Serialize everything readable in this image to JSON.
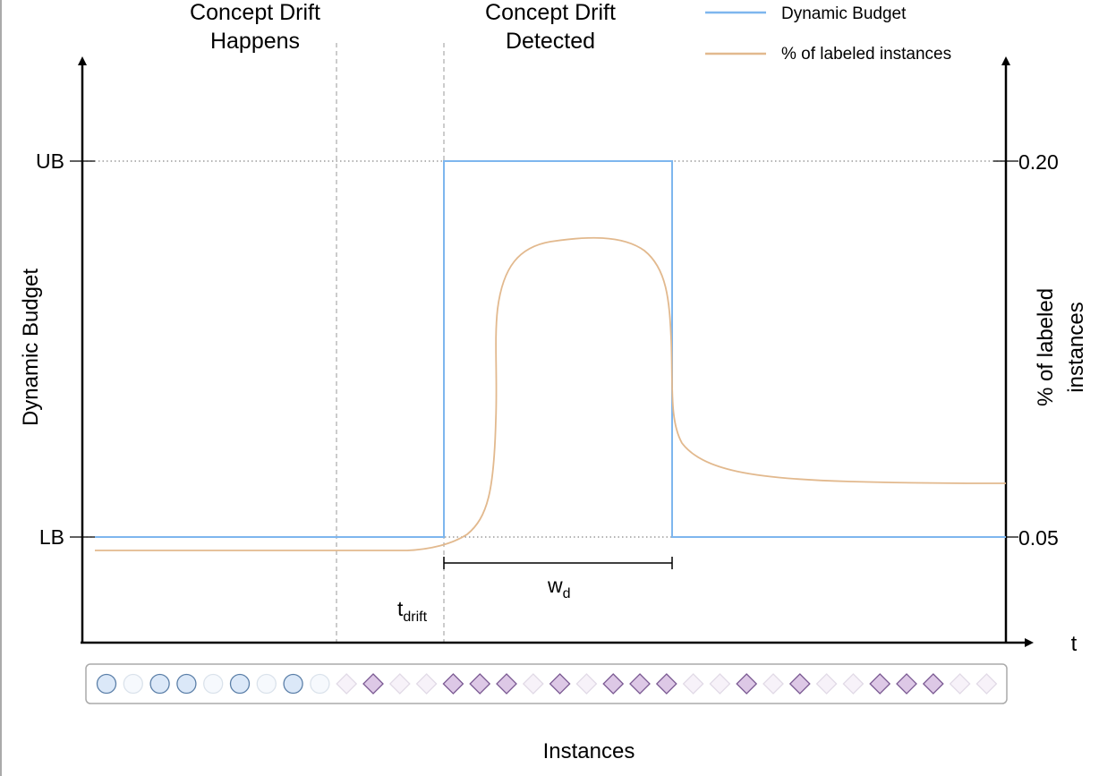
{
  "annotations": {
    "drift_happens": [
      "Concept Drift",
      "Happens"
    ],
    "drift_detected": [
      "Concept Drift",
      "Detected"
    ],
    "t_drift": {
      "base": "t",
      "sub": "drift"
    },
    "w_d": {
      "base": "w",
      "sub": "d"
    }
  },
  "legend": [
    {
      "label": "Dynamic Budget",
      "color": "#7eb6ee"
    },
    {
      "label": "% of labeled instances",
      "color": "#e2b98e"
    }
  ],
  "axes": {
    "left_title": "Dynamic Budget",
    "left_ticks": [
      "UB",
      "LB"
    ],
    "right_title": [
      "% of labeled",
      "instances"
    ],
    "right_ticks": [
      "0.20",
      "0.05"
    ],
    "x_label": "t",
    "bottom_title": "Instances"
  },
  "colors": {
    "budget": "#7eb6ee",
    "labeled": "#e2b98e",
    "axis": "#000000",
    "guide": "#aaaaaa",
    "circle_fill": "#dbe8f8",
    "circle_stroke": "#5b7fa8",
    "diamond_fill": "#ddc8e6",
    "diamond_stroke": "#7b5a93"
  },
  "instances": [
    {
      "shape": "circle",
      "labeled": true
    },
    {
      "shape": "circle",
      "labeled": false
    },
    {
      "shape": "circle",
      "labeled": true
    },
    {
      "shape": "circle",
      "labeled": true
    },
    {
      "shape": "circle",
      "labeled": false
    },
    {
      "shape": "circle",
      "labeled": true
    },
    {
      "shape": "circle",
      "labeled": false
    },
    {
      "shape": "circle",
      "labeled": true
    },
    {
      "shape": "circle",
      "labeled": false
    },
    {
      "shape": "diamond",
      "labeled": false
    },
    {
      "shape": "diamond",
      "labeled": true
    },
    {
      "shape": "diamond",
      "labeled": false
    },
    {
      "shape": "diamond",
      "labeled": false
    },
    {
      "shape": "diamond",
      "labeled": true
    },
    {
      "shape": "diamond",
      "labeled": true
    },
    {
      "shape": "diamond",
      "labeled": true
    },
    {
      "shape": "diamond",
      "labeled": false
    },
    {
      "shape": "diamond",
      "labeled": true
    },
    {
      "shape": "diamond",
      "labeled": false
    },
    {
      "shape": "diamond",
      "labeled": true
    },
    {
      "shape": "diamond",
      "labeled": true
    },
    {
      "shape": "diamond",
      "labeled": true
    },
    {
      "shape": "diamond",
      "labeled": false
    },
    {
      "shape": "diamond",
      "labeled": false
    },
    {
      "shape": "diamond",
      "labeled": true
    },
    {
      "shape": "diamond",
      "labeled": false
    },
    {
      "shape": "diamond",
      "labeled": true
    },
    {
      "shape": "diamond",
      "labeled": false
    },
    {
      "shape": "diamond",
      "labeled": false
    },
    {
      "shape": "diamond",
      "labeled": true
    },
    {
      "shape": "diamond",
      "labeled": true
    },
    {
      "shape": "diamond",
      "labeled": true
    },
    {
      "shape": "diamond",
      "labeled": false
    },
    {
      "shape": "diamond",
      "labeled": false
    }
  ]
}
